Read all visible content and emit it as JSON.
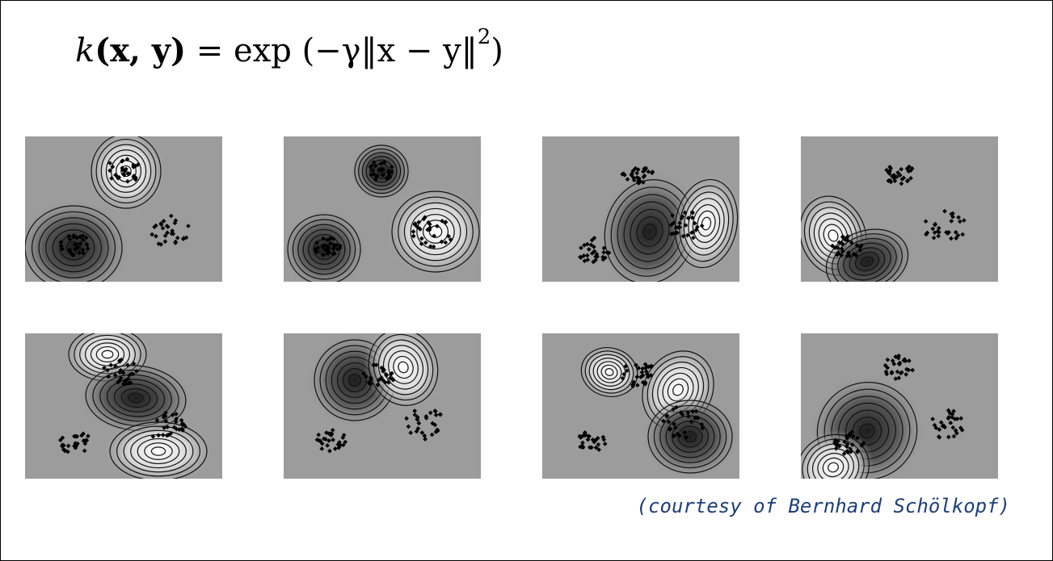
{
  "formula": {
    "lhs_fn": "k",
    "lhs_args": "(x, y)",
    "eq": "=",
    "fn": "exp",
    "body": "(−γ‖x − y‖",
    "power": "2",
    "close": ")"
  },
  "credit": "(courtesy of Bernhard Schölkopf)",
  "colors": {
    "credit_text": "#1e3f7a",
    "border": "#000000"
  },
  "panels": [
    {
      "row": 0,
      "col": 0,
      "blobs": [
        {
          "dark": false
        },
        {
          "dark": true
        }
      ]
    },
    {
      "row": 0,
      "col": 1,
      "blobs": [
        {
          "dark": true
        },
        {
          "dark": true
        },
        {
          "dark": false
        }
      ]
    },
    {
      "row": 0,
      "col": 2,
      "blobs": [
        {
          "dark": true
        },
        {
          "dark": false
        }
      ]
    },
    {
      "row": 0,
      "col": 3,
      "blobs": [
        {
          "dark": false
        },
        {
          "dark": true
        }
      ]
    },
    {
      "row": 1,
      "col": 0,
      "blobs": [
        {
          "dark": false
        },
        {
          "dark": true
        },
        {
          "dark": false
        }
      ]
    },
    {
      "row": 1,
      "col": 1,
      "blobs": [
        {
          "dark": true
        },
        {
          "dark": false
        }
      ]
    },
    {
      "row": 1,
      "col": 2,
      "blobs": [
        {
          "dark": false
        },
        {
          "dark": false
        },
        {
          "dark": true
        }
      ]
    },
    {
      "row": 1,
      "col": 3,
      "blobs": [
        {
          "dark": true
        },
        {
          "dark": false
        }
      ]
    }
  ]
}
